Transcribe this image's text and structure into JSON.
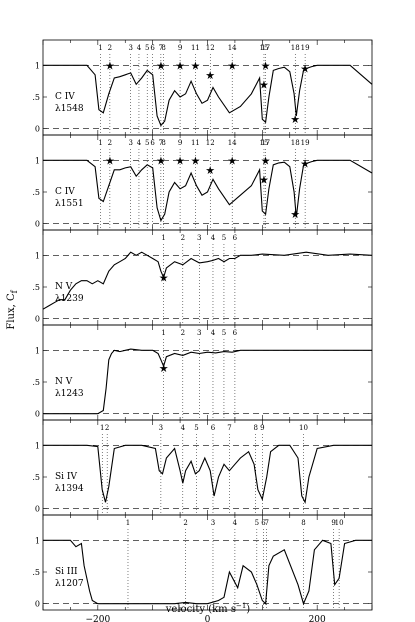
{
  "figure": {
    "y_axis_label_main": "Flux, C",
    "y_axis_label_sub": "f",
    "x_axis_label": "velocity (km s",
    "x_axis_label_exp": "−1",
    "x_axis_label_end": ")"
  },
  "chart_data": [
    {
      "type": "line",
      "panel": "C IV 1548",
      "ion": "C IV",
      "line": "λ1548",
      "xlim": [
        -300,
        300
      ],
      "ylim": [
        -0.1,
        1.4
      ],
      "yticks": [
        0,
        0.5,
        1
      ],
      "ytick_labels": [
        "0",
        ".5",
        "1"
      ],
      "component_labels": [
        "1",
        "2",
        "3",
        "4",
        "5",
        "6",
        "7",
        "8",
        "9",
        "11",
        "12",
        "14",
        "15",
        "17",
        "18",
        "19"
      ],
      "component_velocities": [
        -195,
        -178,
        -140,
        -125,
        -110,
        -100,
        -85,
        -80,
        -50,
        -22,
        5,
        45,
        103,
        106,
        160,
        178
      ],
      "star_markers": [
        [
          -178,
          1.0
        ],
        [
          -85,
          1.0
        ],
        [
          -50,
          1.0
        ],
        [
          -22,
          1.0
        ],
        [
          5,
          0.85
        ],
        [
          45,
          1.0
        ],
        [
          103,
          0.7
        ],
        [
          106,
          1.0
        ],
        [
          160,
          0.15
        ],
        [
          178,
          0.95
        ]
      ],
      "profile": {
        "x": [
          -300,
          -220,
          -205,
          -198,
          -190,
          -180,
          -170,
          -160,
          -150,
          -140,
          -130,
          -120,
          -110,
          -100,
          -92,
          -85,
          -78,
          -70,
          -60,
          -50,
          -40,
          -30,
          -20,
          -10,
          0,
          10,
          20,
          40,
          60,
          80,
          95,
          100,
          106,
          112,
          120,
          130,
          140,
          150,
          158,
          162,
          168,
          175,
          180,
          190,
          200,
          230,
          260,
          300
        ],
        "y": [
          1.0,
          1.0,
          0.85,
          0.3,
          0.25,
          0.55,
          0.8,
          0.82,
          0.85,
          0.88,
          0.7,
          0.8,
          0.92,
          0.85,
          0.2,
          0.05,
          0.12,
          0.45,
          0.6,
          0.5,
          0.55,
          0.75,
          0.55,
          0.4,
          0.45,
          0.65,
          0.5,
          0.25,
          0.35,
          0.55,
          0.8,
          0.15,
          0.1,
          0.5,
          0.92,
          0.95,
          0.97,
          0.9,
          0.55,
          0.2,
          0.6,
          0.92,
          0.95,
          0.98,
          1.0,
          1.0,
          1.0,
          0.7
        ]
      }
    },
    {
      "type": "line",
      "panel": "C IV 1551",
      "ion": "C IV",
      "line": "λ1551",
      "xlim": [
        -300,
        300
      ],
      "ylim": [
        -0.1,
        1.4
      ],
      "yticks": [
        0,
        0.5,
        1
      ],
      "ytick_labels": [
        "0",
        ".5",
        "1"
      ],
      "component_labels": [
        "1",
        "2",
        "3",
        "4",
        "5",
        "6",
        "7",
        "8",
        "9",
        "11",
        "12",
        "14",
        "15",
        "17",
        "18",
        "19"
      ],
      "component_velocities": [
        -195,
        -178,
        -140,
        -125,
        -110,
        -100,
        -85,
        -80,
        -50,
        -22,
        5,
        45,
        103,
        106,
        160,
        178
      ],
      "star_markers": [
        [
          -178,
          1.0
        ],
        [
          -85,
          1.0
        ],
        [
          -50,
          1.0
        ],
        [
          -22,
          1.0
        ],
        [
          5,
          0.85
        ],
        [
          45,
          1.0
        ],
        [
          103,
          0.7
        ],
        [
          106,
          1.0
        ],
        [
          160,
          0.15
        ],
        [
          178,
          0.95
        ]
      ],
      "profile": {
        "x": [
          -300,
          -220,
          -205,
          -198,
          -190,
          -180,
          -170,
          -160,
          -150,
          -140,
          -130,
          -120,
          -110,
          -100,
          -92,
          -85,
          -78,
          -70,
          -60,
          -50,
          -40,
          -30,
          -20,
          -10,
          0,
          10,
          20,
          40,
          60,
          80,
          95,
          100,
          106,
          112,
          120,
          130,
          140,
          150,
          158,
          162,
          168,
          175,
          180,
          190,
          200,
          230,
          260,
          300
        ],
        "y": [
          1.0,
          1.0,
          0.9,
          0.4,
          0.35,
          0.6,
          0.85,
          0.85,
          0.88,
          0.9,
          0.75,
          0.85,
          0.93,
          0.88,
          0.25,
          0.05,
          0.15,
          0.5,
          0.65,
          0.55,
          0.6,
          0.8,
          0.6,
          0.45,
          0.5,
          0.7,
          0.55,
          0.3,
          0.45,
          0.6,
          0.85,
          0.2,
          0.15,
          0.55,
          0.93,
          0.96,
          0.97,
          0.9,
          0.5,
          0.1,
          0.55,
          0.92,
          0.95,
          0.98,
          1.0,
          1.0,
          1.0,
          0.8
        ]
      }
    },
    {
      "type": "line",
      "panel": "N V 1239",
      "ion": "N V",
      "line": "λ1239",
      "xlim": [
        -300,
        300
      ],
      "ylim": [
        -0.1,
        1.4
      ],
      "yticks": [
        0,
        0.5,
        1
      ],
      "ytick_labels": [
        "0",
        ".5",
        "1"
      ],
      "component_labels": [
        "1",
        "2",
        "3",
        "4",
        "5",
        "6"
      ],
      "component_velocities": [
        -80,
        -45,
        -15,
        10,
        30,
        50
      ],
      "star_markers": [
        [
          -80,
          0.65
        ]
      ],
      "profile": {
        "x": [
          -300,
          -290,
          -280,
          -270,
          -260,
          -250,
          -240,
          -230,
          -220,
          -210,
          -200,
          -190,
          -180,
          -170,
          -160,
          -150,
          -140,
          -130,
          -120,
          -110,
          -100,
          -90,
          -85,
          -80,
          -75,
          -60,
          -45,
          -30,
          -15,
          0,
          10,
          20,
          30,
          40,
          50,
          60,
          80,
          100,
          140,
          180,
          220,
          260,
          300
        ],
        "y": [
          0.15,
          0.2,
          0.25,
          0.3,
          0.3,
          0.45,
          0.55,
          0.6,
          0.6,
          0.55,
          0.6,
          0.55,
          0.75,
          0.85,
          0.9,
          0.95,
          1.05,
          1.0,
          1.05,
          1.0,
          0.95,
          0.9,
          0.75,
          0.65,
          0.8,
          0.9,
          0.85,
          0.95,
          0.88,
          0.9,
          0.92,
          0.95,
          0.9,
          0.95,
          0.95,
          1.0,
          1.0,
          1.02,
          1.0,
          1.05,
          1.0,
          1.02,
          1.0
        ]
      }
    },
    {
      "type": "line",
      "panel": "N V 1243",
      "ion": "N V",
      "line": "λ1243",
      "xlim": [
        -300,
        300
      ],
      "ylim": [
        -0.1,
        1.4
      ],
      "yticks": [
        0,
        0.5,
        1
      ],
      "ytick_labels": [
        "0",
        ".5",
        "1"
      ],
      "component_labels": [
        "1",
        "2",
        "3",
        "4",
        "5",
        "6"
      ],
      "component_velocities": [
        -80,
        -45,
        -15,
        10,
        30,
        50
      ],
      "star_markers": [
        [
          -80,
          0.72
        ]
      ],
      "profile": {
        "x": [
          -300,
          -260,
          -220,
          -200,
          -190,
          -185,
          -180,
          -175,
          -170,
          -160,
          -150,
          -140,
          -120,
          -100,
          -90,
          -85,
          -80,
          -75,
          -60,
          -45,
          -30,
          -15,
          0,
          15,
          30,
          45,
          60,
          80,
          100,
          140,
          180,
          220,
          260,
          300
        ],
        "y": [
          0.0,
          0.0,
          0.0,
          0.0,
          0.05,
          0.4,
          0.85,
          0.95,
          1.0,
          0.98,
          1.0,
          1.02,
          1.0,
          1.0,
          0.95,
          0.85,
          0.75,
          0.9,
          0.95,
          0.92,
          0.97,
          0.95,
          0.97,
          0.96,
          0.98,
          0.97,
          1.0,
          1.0,
          1.0,
          1.0,
          1.0,
          1.0,
          1.0,
          1.0
        ]
      }
    },
    {
      "type": "line",
      "panel": "Si IV 1394",
      "ion": "Si IV",
      "line": "λ1394",
      "xlim": [
        -300,
        300
      ],
      "ylim": [
        -0.1,
        1.4
      ],
      "yticks": [
        0,
        0.5,
        1
      ],
      "ytick_labels": [
        "0",
        ".5",
        "1"
      ],
      "component_labels": [
        "1",
        "2",
        "3",
        "4",
        "5",
        "6",
        "7",
        "8",
        "9",
        "10"
      ],
      "component_velocities": [
        -192,
        -183,
        -85,
        -45,
        -20,
        10,
        40,
        88,
        100,
        175
      ],
      "star_markers": [],
      "profile": {
        "x": [
          -300,
          -220,
          -200,
          -192,
          -186,
          -180,
          -170,
          -150,
          -120,
          -95,
          -88,
          -82,
          -75,
          -60,
          -50,
          -45,
          -40,
          -30,
          -22,
          -15,
          -5,
          5,
          12,
          20,
          30,
          40,
          50,
          60,
          75,
          85,
          92,
          100,
          108,
          115,
          130,
          150,
          165,
          172,
          178,
          185,
          200,
          230,
          260,
          300
        ],
        "y": [
          1.0,
          1.0,
          0.98,
          0.3,
          0.1,
          0.35,
          0.95,
          1.0,
          1.0,
          0.95,
          0.6,
          0.55,
          0.8,
          0.95,
          0.6,
          0.4,
          0.6,
          0.75,
          0.55,
          0.6,
          0.8,
          0.6,
          0.2,
          0.5,
          0.7,
          0.6,
          0.7,
          0.8,
          0.9,
          0.7,
          0.3,
          0.15,
          0.5,
          0.9,
          1.0,
          1.0,
          0.8,
          0.2,
          0.1,
          0.5,
          0.95,
          1.0,
          1.0,
          1.0
        ]
      }
    },
    {
      "type": "line",
      "panel": "Si III 1207",
      "ion": "Si III",
      "line": "λ1207",
      "xlim": [
        -300,
        300
      ],
      "ylim": [
        -0.1,
        1.4
      ],
      "yticks": [
        0,
        0.5,
        1
      ],
      "ytick_labels": [
        "0",
        ".5",
        "1"
      ],
      "component_labels": [
        "1",
        "2",
        "3",
        "4",
        "5",
        "6",
        "7",
        "8",
        "9",
        "10"
      ],
      "component_velocities": [
        -145,
        -40,
        10,
        50,
        90,
        102,
        108,
        175,
        230,
        240
      ],
      "star_markers": [],
      "profile": {
        "x": [
          -300,
          -270,
          -250,
          -240,
          -230,
          -225,
          -215,
          -210,
          -200,
          -150,
          -100,
          -60,
          -40,
          -20,
          0,
          20,
          30,
          40,
          55,
          65,
          80,
          90,
          100,
          106,
          112,
          120,
          140,
          165,
          175,
          185,
          195,
          210,
          225,
          232,
          240,
          250,
          270,
          300
        ],
        "y": [
          1.0,
          1.0,
          1.0,
          0.9,
          0.95,
          0.6,
          0.2,
          0.05,
          0.0,
          0.0,
          0.0,
          0.0,
          0.02,
          0.0,
          0.0,
          0.05,
          0.1,
          0.5,
          0.25,
          0.6,
          0.5,
          0.3,
          0.05,
          0.0,
          0.6,
          0.75,
          0.85,
          0.3,
          0.0,
          0.2,
          0.85,
          1.0,
          0.95,
          0.3,
          0.4,
          0.95,
          1.0,
          1.0
        ]
      }
    }
  ],
  "x_ticks": [
    -200,
    0,
    200
  ],
  "x_tick_labels": [
    "−200",
    "0",
    "200"
  ]
}
